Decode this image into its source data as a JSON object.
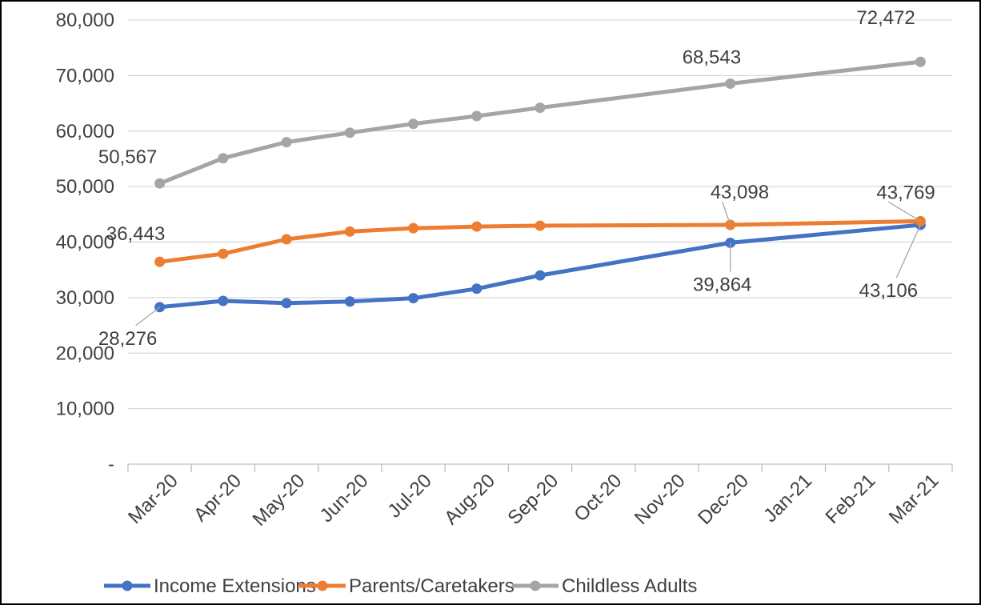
{
  "chart_data": {
    "type": "line",
    "title": "",
    "xlabel": "",
    "ylabel": "",
    "ylim": [
      0,
      80000
    ],
    "yticks": [
      0,
      10000,
      20000,
      30000,
      40000,
      50000,
      60000,
      70000,
      80000
    ],
    "ytick_labels": [
      "-",
      "10,000",
      "20,000",
      "30,000",
      "40,000",
      "50,000",
      "60,000",
      "70,000",
      "80,000"
    ],
    "categories": [
      "Mar-20",
      "Apr-20",
      "May-20",
      "Jun-20",
      "Jul-20",
      "Aug-20",
      "Sep-20",
      "Oct-20",
      "Nov-20",
      "Dec-20",
      "Jan-21",
      "Feb-21",
      "Mar-21"
    ],
    "grid": true,
    "legend_position": "bottom",
    "series": [
      {
        "name": "Income Extensions",
        "color": "#4472C4",
        "values": [
          28276,
          29400,
          29000,
          29300,
          29900,
          31600,
          34000,
          null,
          null,
          39864,
          null,
          null,
          43106
        ],
        "data_labels": {
          "0": "28,276",
          "9": "39,864",
          "12": "43,106"
        }
      },
      {
        "name": "Parents/Caretakers",
        "color": "#ED7D31",
        "values": [
          36443,
          37900,
          40500,
          41900,
          42500,
          42800,
          42950,
          null,
          null,
          43098,
          null,
          null,
          43769
        ],
        "data_labels": {
          "0": "36,443",
          "9": "43,098",
          "12": "43,769"
        }
      },
      {
        "name": "Childless Adults",
        "color": "#A5A5A5",
        "values": [
          50567,
          55100,
          58000,
          59700,
          61300,
          62700,
          64200,
          null,
          null,
          68543,
          null,
          null,
          72472
        ],
        "data_labels": {
          "0": "50,567",
          "9": "68,543",
          "12": "72,472"
        }
      }
    ]
  }
}
